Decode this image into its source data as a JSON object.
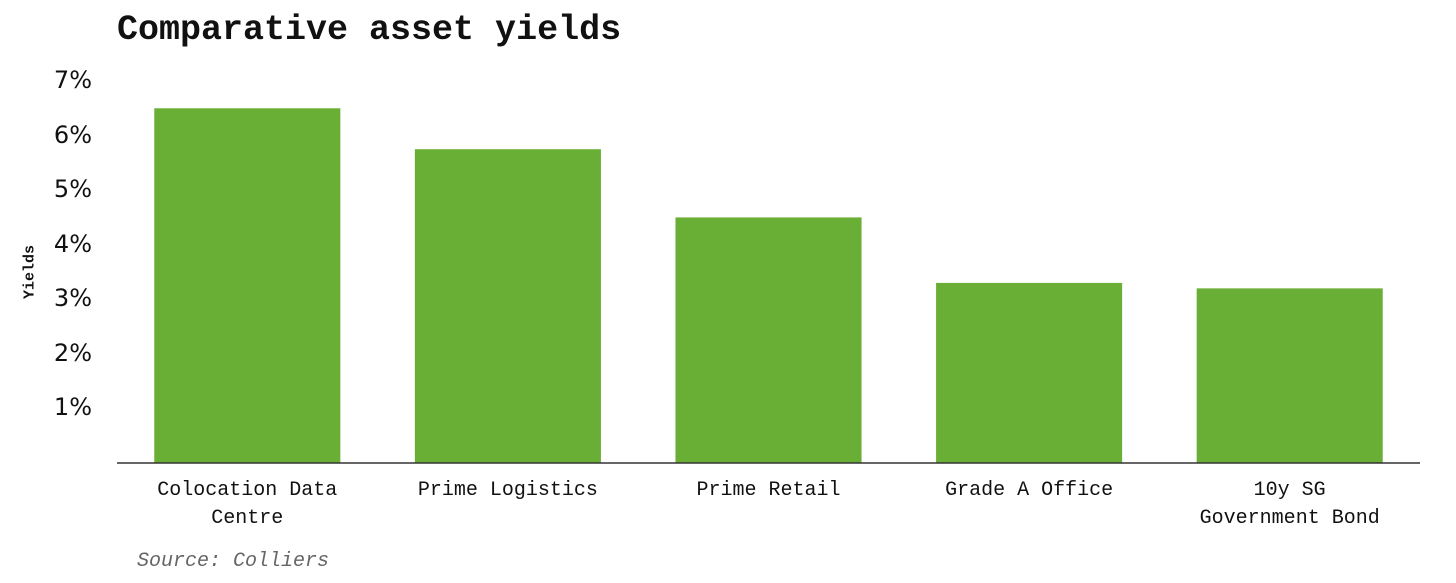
{
  "chart_data": {
    "type": "bar",
    "title": "Comparative asset yields",
    "y_label": "Yields",
    "source": "Source: Colliers",
    "categories": [
      "Colocation Data Centre",
      "Prime Logistics",
      "Prime Retail",
      "Grade A Office",
      "10y SG Government Bond"
    ],
    "values": [
      6.5,
      5.75,
      4.5,
      3.3,
      3.2
    ],
    "color": "#6aaf35",
    "ylim": [
      0,
      7
    ],
    "yticks": [
      {
        "value": 1,
        "label": "1%"
      },
      {
        "value": 2,
        "label": "2%"
      },
      {
        "value": 3,
        "label": "3%"
      },
      {
        "value": 4,
        "label": "4%"
      },
      {
        "value": 5,
        "label": "5%"
      },
      {
        "value": 6,
        "label": "6%"
      },
      {
        "value": 7,
        "label": "7%"
      }
    ],
    "grid": false
  }
}
